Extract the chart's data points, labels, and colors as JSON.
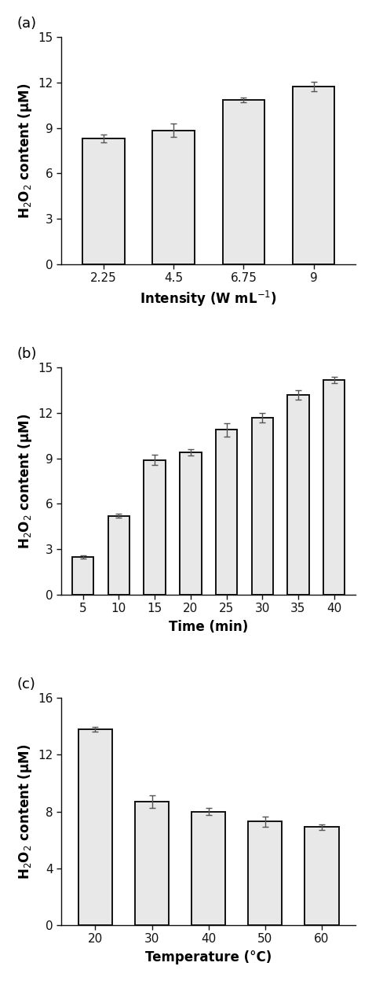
{
  "panel_a": {
    "x_labels": [
      "2.25",
      "4.5",
      "6.75",
      "9"
    ],
    "values": [
      8.3,
      8.85,
      10.85,
      11.75
    ],
    "errors": [
      0.25,
      0.45,
      0.15,
      0.3
    ],
    "xlabel": "Intensity (W mL$^{-1}$)",
    "ylabel": "H$_2$O$_2$ content (μM)",
    "ylim": [
      0,
      15
    ],
    "yticks": [
      0,
      3,
      6,
      9,
      12,
      15
    ],
    "label": "(a)"
  },
  "panel_b": {
    "x_labels": [
      "5",
      "10",
      "15",
      "20",
      "25",
      "30",
      "35",
      "40"
    ],
    "values": [
      2.5,
      5.2,
      8.9,
      9.4,
      10.9,
      11.7,
      13.2,
      14.2
    ],
    "errors": [
      0.1,
      0.12,
      0.35,
      0.2,
      0.45,
      0.3,
      0.3,
      0.2
    ],
    "xlabel": "Time (min)",
    "ylabel": "H$_2$O$_2$ content (μM)",
    "ylim": [
      0,
      15
    ],
    "yticks": [
      0,
      3,
      6,
      9,
      12,
      15
    ],
    "label": "(b)"
  },
  "panel_c": {
    "x_labels": [
      "20",
      "30",
      "40",
      "50",
      "60"
    ],
    "values": [
      13.8,
      8.7,
      8.0,
      7.3,
      6.9
    ],
    "errors": [
      0.15,
      0.45,
      0.25,
      0.35,
      0.2
    ],
    "xlabel": "Temperature (°C)",
    "ylabel": "H$_2$O$_2$ content (μM)",
    "ylim": [
      0,
      16
    ],
    "yticks": [
      0,
      4,
      8,
      12,
      16
    ],
    "label": "(c)"
  },
  "bar_color": "#e8e8e8",
  "bar_edgecolor": "#111111",
  "bar_linewidth": 1.4,
  "error_color": "#555555",
  "error_linewidth": 1.0,
  "error_capsize": 3,
  "error_capthick": 1.0,
  "spine_linewidth": 1.0,
  "tick_fontsize": 11,
  "axis_label_fontsize": 12,
  "panel_label_fontsize": 13,
  "bar_width": 0.6
}
